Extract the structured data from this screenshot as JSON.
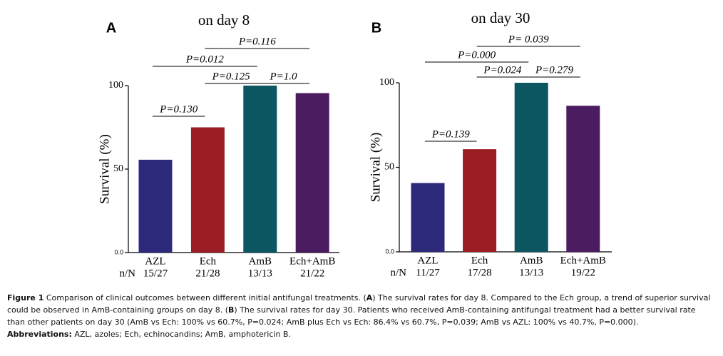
{
  "chart_data": [
    {
      "type": "bar",
      "panel": "A",
      "title": "on day 8",
      "y_label": "Survival (%)",
      "categories": [
        "AZL",
        "Ech",
        "AmB",
        "Ech+AmB"
      ],
      "counts_label": "n/N",
      "counts": [
        "15/27",
        "21/28",
        "13/13",
        "21/22"
      ],
      "values": [
        55.6,
        75,
        100,
        95.5
      ],
      "colors": [
        "#2d2a7b",
        "#9c1c23",
        "#0c5661",
        "#4b1c5f"
      ],
      "ylim": [
        0,
        100
      ],
      "yticks": [
        {
          "value": 0,
          "label": "0.0"
        },
        50,
        100
      ],
      "comparisons": [
        "P=0.130",
        "P=0.125",
        "P=1.0",
        "P=0.012",
        "P=0.116"
      ]
    },
    {
      "type": "bar",
      "panel": "B",
      "title": "on day 30",
      "y_label": "Survival (%)",
      "categories": [
        "AZL",
        "Ech",
        "AmB",
        "Ech+AmB"
      ],
      "counts_label": "n/N",
      "counts": [
        "11/27",
        "17/28",
        "13/13",
        "19/22"
      ],
      "values": [
        40.7,
        60.7,
        100,
        86.4
      ],
      "colors": [
        "#2d2a7b",
        "#9c1c23",
        "#0c5661",
        "#4b1c5f"
      ],
      "ylim": [
        0,
        100
      ],
      "yticks": [
        {
          "value": 0,
          "label": "0.0"
        },
        50,
        100
      ],
      "comparisons": [
        "P=0.139",
        "P=0.024",
        "P=0.279",
        "P=0.000",
        "P= 0.039"
      ]
    }
  ],
  "caption": [
    [
      {
        "text": "Figure 1",
        "bold": true
      },
      {
        "text": " Comparison of clinical outcomes between different initial antifungal treatments. (",
        "bold": false
      },
      {
        "text": "A",
        "bold": true
      },
      {
        "text": ") The survival rates for day 8. Compared to the Ech group, a trend of superior survival could be observed in AmB-containing groups on day 8. (",
        "bold": false
      },
      {
        "text": "B",
        "bold": true
      },
      {
        "text": ") The survival rates for day 30. Patients who received AmB-containing antifungal treatment had a better survival rate than other patients on day 30 (AmB vs Ech: 100% vs 60.7%, P=0.024; AmB plus Ech vs Ech: 86.4% vs 60.7%, P=0.039; AmB vs AZL: 100% vs 40.7%, P=0.000).",
        "bold": false
      }
    ],
    [
      {
        "text": "Abbreviations:",
        "bold": true
      },
      {
        "text": " AZL, azoles; Ech, echinocandins; AmB, amphotericin B.",
        "bold": false
      }
    ]
  ]
}
